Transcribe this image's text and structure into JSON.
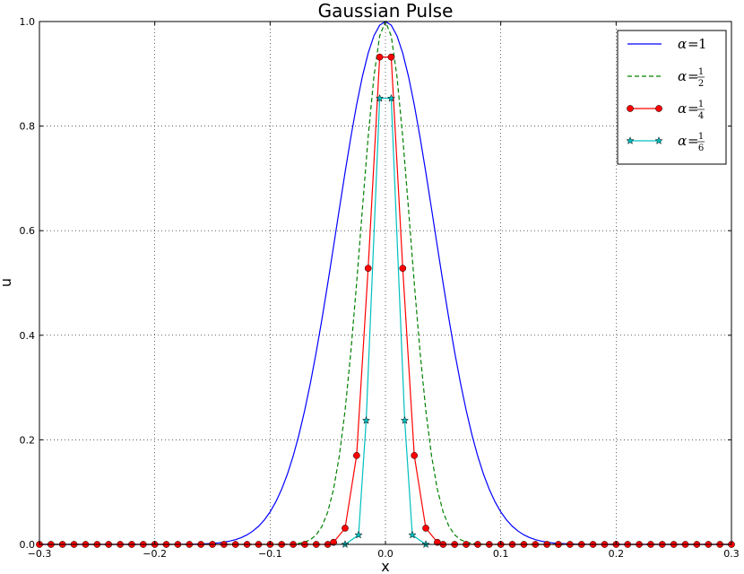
{
  "chart_data": {
    "type": "line",
    "title": "Gaussian Pulse",
    "xlabel": "x",
    "ylabel": "u",
    "xlim": [
      -0.3,
      0.3
    ],
    "ylim": [
      0.0,
      1.0
    ],
    "xticks": [
      -0.3,
      -0.2,
      -0.1,
      0.0,
      0.1,
      0.2,
      0.3
    ],
    "xtick_labels": [
      "−0.3",
      "−0.2",
      "−0.1",
      "0.0",
      "0.1",
      "0.2",
      "0.3"
    ],
    "yticks": [
      0.0,
      0.2,
      0.4,
      0.6,
      0.8,
      1.0
    ],
    "ytick_labels": [
      "0.0",
      "0.2",
      "0.4",
      "0.6",
      "0.8",
      "1.0"
    ],
    "grid": true,
    "legend_position": "top-right",
    "series": [
      {
        "name": "α = 1",
        "legend_symbol": "α",
        "legend_eq": "=",
        "legend_num": "1",
        "legend_den": "",
        "color": "#0000ff",
        "linestyle": "solid",
        "marker": "none",
        "gaussian_width": 0.06,
        "x_range": [
          -0.3,
          0.3
        ],
        "x_step": 0.005
      },
      {
        "name": "α = 1/2",
        "legend_symbol": "α",
        "legend_eq": "=",
        "legend_num": "1",
        "legend_den": "2",
        "color": "#008000",
        "linestyle": "dashed",
        "marker": "none",
        "gaussian_width": 0.03,
        "x_range": [
          -0.3,
          0.3
        ],
        "x_step": 0.005
      },
      {
        "name": "α = 1/4",
        "legend_symbol": "α",
        "legend_eq": "=",
        "legend_num": "1",
        "legend_den": "4",
        "color": "#ff0000",
        "linestyle": "solid",
        "marker": "circle",
        "x": [
          -0.3,
          -0.29,
          -0.28,
          -0.27,
          -0.26,
          -0.25,
          -0.24,
          -0.23,
          -0.22,
          -0.21,
          -0.2,
          -0.19,
          -0.18,
          -0.17,
          -0.16,
          -0.15,
          -0.14,
          -0.13,
          -0.12,
          -0.11,
          -0.1,
          -0.09,
          -0.08,
          -0.07,
          -0.06,
          -0.05,
          -0.045,
          -0.035,
          -0.025,
          -0.015,
          -0.005,
          0.005,
          0.015,
          0.025,
          0.035,
          0.045,
          0.05,
          0.06,
          0.07,
          0.08,
          0.09,
          0.1,
          0.11,
          0.12,
          0.13,
          0.14,
          0.15,
          0.16,
          0.17,
          0.18,
          0.19,
          0.2,
          0.21,
          0.22,
          0.23,
          0.24,
          0.25,
          0.26,
          0.27,
          0.28,
          0.29,
          0.3
        ],
        "y": [
          0,
          0,
          0,
          0,
          0,
          0,
          0,
          0,
          0,
          0,
          0,
          0,
          0,
          0,
          0,
          0,
          0,
          0,
          0,
          0,
          0,
          0,
          0,
          0,
          0,
          0,
          0.004,
          0.031,
          0.17,
          0.528,
          0.932,
          0.932,
          0.528,
          0.17,
          0.031,
          0.004,
          0,
          0,
          0,
          0,
          0,
          0,
          0,
          0,
          0,
          0,
          0,
          0,
          0,
          0,
          0,
          0,
          0,
          0,
          0,
          0,
          0,
          0,
          0,
          0,
          0,
          0
        ]
      },
      {
        "name": "α = 1/6",
        "legend_symbol": "α",
        "legend_eq": "=",
        "legend_num": "1",
        "legend_den": "6",
        "color": "#00bfbf",
        "linestyle": "solid",
        "marker": "star",
        "x": [
          -0.035,
          -0.0233,
          -0.0167,
          -0.005,
          0.005,
          0.0167,
          0.0233,
          0.035
        ],
        "y": [
          0,
          0.018,
          0.237,
          0.853,
          0.853,
          0.237,
          0.018,
          0
        ]
      }
    ]
  }
}
